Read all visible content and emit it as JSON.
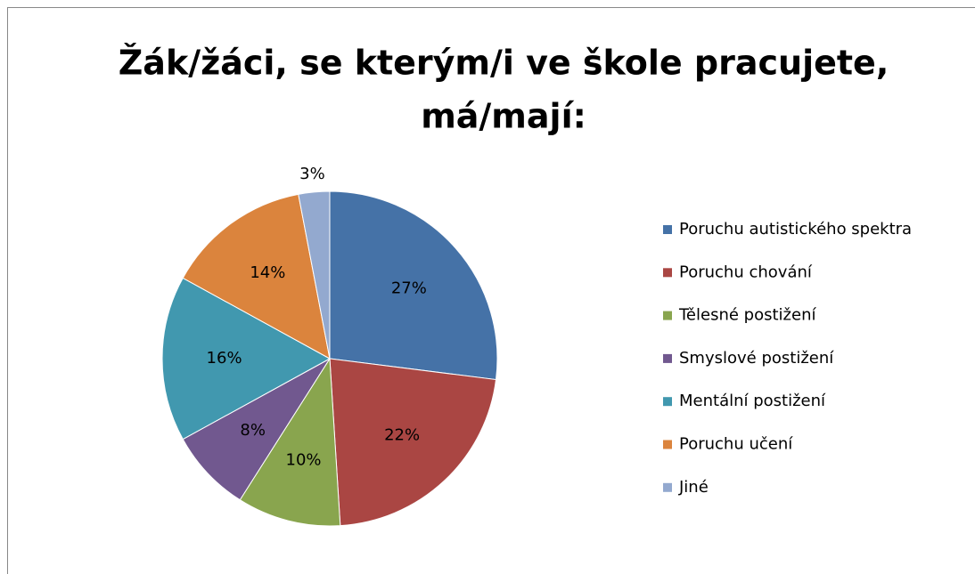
{
  "chart_data": {
    "type": "pie",
    "title": [
      "Žák/žáci, se kterým/i ve škole pracujete,",
      "má/mají:"
    ],
    "categories": [
      "Poruchu autistického spektra",
      "Poruchu chování",
      "Tělesné postižení",
      "Smyslové postižení",
      "Mentální postižení",
      "Poruchu učení",
      "Jiné"
    ],
    "values": [
      27,
      22,
      10,
      8,
      16,
      14,
      3
    ],
    "value_labels": [
      "27%",
      "22%",
      "10%",
      "8%",
      "16%",
      "14%",
      "3%"
    ],
    "colors": [
      "#4572a7",
      "#aa4643",
      "#89a54e",
      "#71588f",
      "#4198af",
      "#db843d",
      "#93a9cf"
    ],
    "legend": "right"
  }
}
